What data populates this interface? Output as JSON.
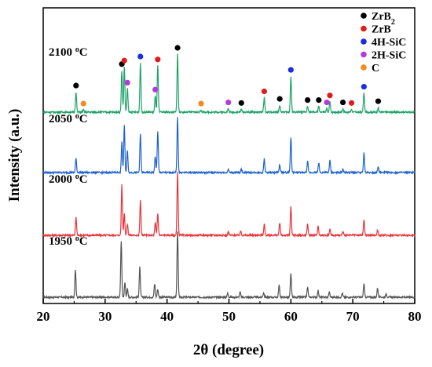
{
  "chart_data": {
    "type": "line",
    "title": "",
    "xlabel": "2θ (degree)",
    "ylabel": "Intensity (a.u.)",
    "xlim": [
      20,
      80
    ],
    "xticks": [
      20,
      30,
      40,
      50,
      60,
      70,
      80
    ],
    "yticks_shown": false,
    "series": [
      {
        "name": "1950 °C",
        "color": "#555555",
        "offset": 0,
        "peaks": [
          {
            "x": 25.2,
            "h": 0.42
          },
          {
            "x": 32.6,
            "h": 0.85
          },
          {
            "x": 33.2,
            "h": 0.22
          },
          {
            "x": 33.6,
            "h": 0.12
          },
          {
            "x": 35.6,
            "h": 0.45
          },
          {
            "x": 38.0,
            "h": 0.2
          },
          {
            "x": 38.5,
            "h": 0.12
          },
          {
            "x": 41.7,
            "h": 1.0
          },
          {
            "x": 49.8,
            "h": 0.06
          },
          {
            "x": 51.8,
            "h": 0.08
          },
          {
            "x": 55.6,
            "h": 0.07
          },
          {
            "x": 58.1,
            "h": 0.18
          },
          {
            "x": 60.0,
            "h": 0.35
          },
          {
            "x": 62.7,
            "h": 0.15
          },
          {
            "x": 64.4,
            "h": 0.1
          },
          {
            "x": 66.2,
            "h": 0.08
          },
          {
            "x": 68.3,
            "h": 0.06
          },
          {
            "x": 71.8,
            "h": 0.2
          },
          {
            "x": 74.0,
            "h": 0.14
          },
          {
            "x": 75.4,
            "h": 0.05
          }
        ]
      },
      {
        "name": "2000 °C",
        "color": "#e8343a",
        "offset": 1,
        "peaks": [
          {
            "x": 25.3,
            "h": 0.28
          },
          {
            "x": 32.7,
            "h": 0.8
          },
          {
            "x": 33.1,
            "h": 0.35
          },
          {
            "x": 33.6,
            "h": 0.18
          },
          {
            "x": 35.7,
            "h": 0.55
          },
          {
            "x": 38.1,
            "h": 0.2
          },
          {
            "x": 38.5,
            "h": 0.35
          },
          {
            "x": 41.7,
            "h": 1.0
          },
          {
            "x": 49.9,
            "h": 0.06
          },
          {
            "x": 51.9,
            "h": 0.07
          },
          {
            "x": 55.7,
            "h": 0.18
          },
          {
            "x": 58.2,
            "h": 0.2
          },
          {
            "x": 60.0,
            "h": 0.45
          },
          {
            "x": 62.7,
            "h": 0.18
          },
          {
            "x": 64.4,
            "h": 0.14
          },
          {
            "x": 66.3,
            "h": 0.1
          },
          {
            "x": 68.4,
            "h": 0.06
          },
          {
            "x": 71.8,
            "h": 0.25
          },
          {
            "x": 74.0,
            "h": 0.08
          }
        ]
      },
      {
        "name": "2050 °C",
        "color": "#1e63cf",
        "offset": 2,
        "peaks": [
          {
            "x": 25.3,
            "h": 0.25
          },
          {
            "x": 32.7,
            "h": 0.55
          },
          {
            "x": 33.1,
            "h": 0.85
          },
          {
            "x": 33.6,
            "h": 0.4
          },
          {
            "x": 35.7,
            "h": 0.7
          },
          {
            "x": 38.1,
            "h": 0.3
          },
          {
            "x": 38.5,
            "h": 0.75
          },
          {
            "x": 41.7,
            "h": 1.0
          },
          {
            "x": 49.9,
            "h": 0.06
          },
          {
            "x": 52.0,
            "h": 0.06
          },
          {
            "x": 55.7,
            "h": 0.25
          },
          {
            "x": 58.2,
            "h": 0.15
          },
          {
            "x": 60.0,
            "h": 0.65
          },
          {
            "x": 62.7,
            "h": 0.2
          },
          {
            "x": 64.5,
            "h": 0.18
          },
          {
            "x": 66.3,
            "h": 0.22
          },
          {
            "x": 68.4,
            "h": 0.06
          },
          {
            "x": 71.8,
            "h": 0.35
          },
          {
            "x": 74.1,
            "h": 0.1
          }
        ]
      },
      {
        "name": "2100 °C",
        "color": "#1ea36a",
        "offset": 3,
        "peaks": [
          {
            "x": 25.3,
            "h": 0.35
          },
          {
            "x": 26.5,
            "h": 0.04
          },
          {
            "x": 32.7,
            "h": 0.72
          },
          {
            "x": 33.1,
            "h": 0.78
          },
          {
            "x": 33.6,
            "h": 0.4
          },
          {
            "x": 35.7,
            "h": 0.85
          },
          {
            "x": 38.1,
            "h": 0.28
          },
          {
            "x": 38.5,
            "h": 0.8
          },
          {
            "x": 41.7,
            "h": 1.0
          },
          {
            "x": 45.5,
            "h": 0.04
          },
          {
            "x": 49.9,
            "h": 0.06
          },
          {
            "x": 52.0,
            "h": 0.05
          },
          {
            "x": 55.7,
            "h": 0.25
          },
          {
            "x": 58.2,
            "h": 0.12
          },
          {
            "x": 60.0,
            "h": 0.62
          },
          {
            "x": 62.7,
            "h": 0.1
          },
          {
            "x": 64.5,
            "h": 0.1
          },
          {
            "x": 65.8,
            "h": 0.06
          },
          {
            "x": 66.3,
            "h": 0.18
          },
          {
            "x": 68.4,
            "h": 0.06
          },
          {
            "x": 69.8,
            "h": 0.05
          },
          {
            "x": 71.8,
            "h": 0.33
          },
          {
            "x": 74.1,
            "h": 0.08
          }
        ]
      }
    ],
    "legend": {
      "placement": "top-right",
      "entries": [
        {
          "label": "ZrB",
          "sub": "2",
          "color": "#000000"
        },
        {
          "label": "ZrB",
          "sub": "",
          "color": "#e01b1b"
        },
        {
          "label": "4H-SiC",
          "sub": "",
          "color": "#1a2ee0"
        },
        {
          "label": "2H-SiC",
          "sub": "",
          "color": "#b23bdc"
        },
        {
          "label": "C",
          "sub": "",
          "color": "#f28a1c"
        }
      ]
    },
    "phase_markers": [
      {
        "x": 25.3,
        "h": 0.35,
        "phase": "ZrB2"
      },
      {
        "x": 26.5,
        "h": 0.04,
        "phase": "C"
      },
      {
        "x": 32.7,
        "h": 0.72,
        "phase": "ZrB2"
      },
      {
        "x": 33.1,
        "h": 0.78,
        "phase": "ZrB"
      },
      {
        "x": 33.6,
        "h": 0.4,
        "phase": "2H-SiC"
      },
      {
        "x": 35.7,
        "h": 0.85,
        "phase": "4H-SiC"
      },
      {
        "x": 38.1,
        "h": 0.28,
        "phase": "2H-SiC"
      },
      {
        "x": 38.5,
        "h": 0.8,
        "phase": "ZrB"
      },
      {
        "x": 41.7,
        "h": 1.0,
        "phase": "ZrB2"
      },
      {
        "x": 45.5,
        "h": 0.04,
        "phase": "C"
      },
      {
        "x": 49.9,
        "h": 0.06,
        "phase": "2H-SiC"
      },
      {
        "x": 52.0,
        "h": 0.05,
        "phase": "ZrB2"
      },
      {
        "x": 55.7,
        "h": 0.25,
        "phase": "ZrB"
      },
      {
        "x": 58.2,
        "h": 0.12,
        "phase": "ZrB2"
      },
      {
        "x": 60.0,
        "h": 0.62,
        "phase": "4H-SiC"
      },
      {
        "x": 62.7,
        "h": 0.1,
        "phase": "ZrB2"
      },
      {
        "x": 64.5,
        "h": 0.1,
        "phase": "ZrB2"
      },
      {
        "x": 65.8,
        "h": 0.06,
        "phase": "2H-SiC"
      },
      {
        "x": 66.3,
        "h": 0.18,
        "phase": "ZrB"
      },
      {
        "x": 68.4,
        "h": 0.06,
        "phase": "ZrB2"
      },
      {
        "x": 69.8,
        "h": 0.05,
        "phase": "ZrB"
      },
      {
        "x": 71.8,
        "h": 0.33,
        "phase": "4H-SiC"
      },
      {
        "x": 74.1,
        "h": 0.08,
        "phase": "ZrB2"
      }
    ],
    "sample_labels": [
      {
        "series": "2100 °C",
        "value": "2100",
        "unit": "C",
        "deg": "o"
      },
      {
        "series": "2050 °C",
        "value": "2050",
        "unit": "C",
        "deg": "o"
      },
      {
        "series": "2000 °C",
        "value": "2000",
        "unit": "C",
        "deg": "o"
      },
      {
        "series": "1950 °C",
        "value": "1950",
        "unit": "C",
        "deg": "o"
      }
    ]
  }
}
